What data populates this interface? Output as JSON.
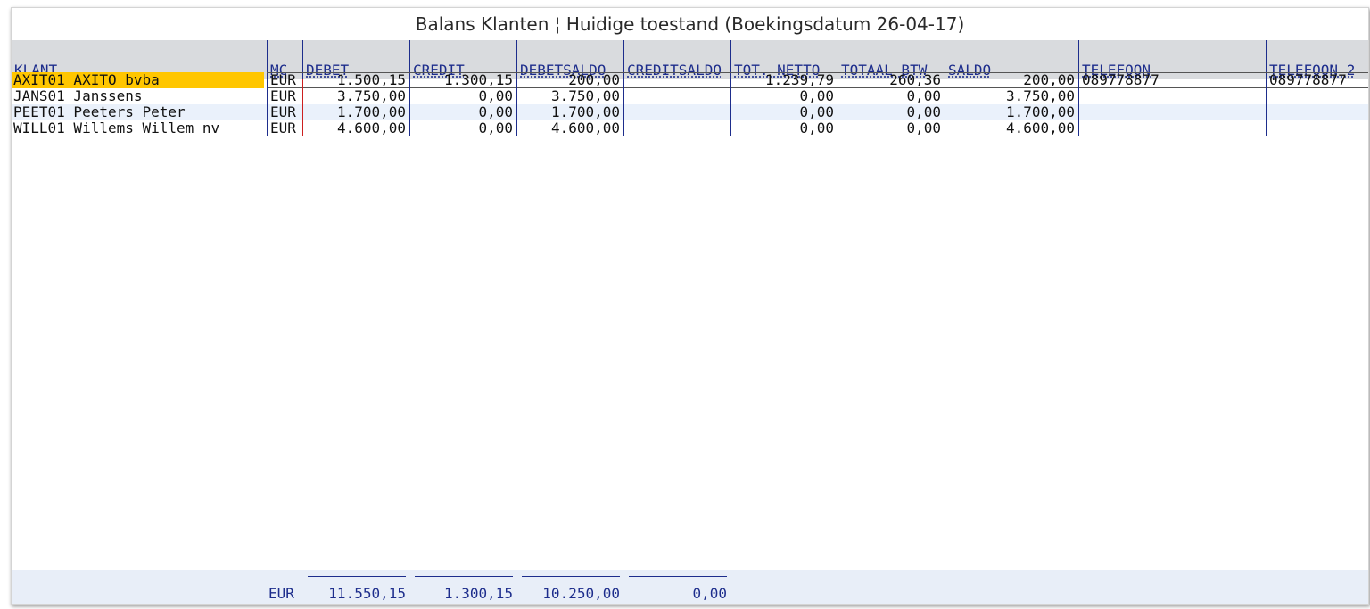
{
  "title": "Balans Klanten ¦ Huidige toestand (Boekingsdatum 26-04-17)",
  "columns": [
    "KLANT",
    "MC",
    "DEBET",
    "CREDIT",
    "DEBETSALDO",
    "CREDITSALDO",
    "TOT. NETTO",
    "TOTAAL BTW",
    "SALDO",
    "TELEFOON",
    "TELEFOON 2"
  ],
  "rows": [
    {
      "klant": "AXIT01 AXITO bvba",
      "mc": "EUR",
      "debet": "1.500,15",
      "credit": "1.300,15",
      "debetsaldo": "200,00",
      "creditsaldo": "",
      "tot_netto": "1.239,79",
      "totaal_btw": "260,36",
      "saldo": "200,00",
      "telefoon": "089778877",
      "telefoon2": "089778877"
    },
    {
      "klant": "JANS01 Janssens",
      "mc": "EUR",
      "debet": "3.750,00",
      "credit": "0,00",
      "debetsaldo": "3.750,00",
      "creditsaldo": "",
      "tot_netto": "0,00",
      "totaal_btw": "0,00",
      "saldo": "3.750,00",
      "telefoon": "",
      "telefoon2": ""
    },
    {
      "klant": "PEET01 Peeters Peter",
      "mc": "EUR",
      "debet": "1.700,00",
      "credit": "0,00",
      "debetsaldo": "1.700,00",
      "creditsaldo": "",
      "tot_netto": "0,00",
      "totaal_btw": "0,00",
      "saldo": "1.700,00",
      "telefoon": "",
      "telefoon2": ""
    },
    {
      "klant": "WILL01 Willems Willem nv",
      "mc": "EUR",
      "debet": "4.600,00",
      "credit": "0,00",
      "debetsaldo": "4.600,00",
      "creditsaldo": "",
      "tot_netto": "0,00",
      "totaal_btw": "0,00",
      "saldo": "4.600,00",
      "telefoon": "",
      "telefoon2": ""
    }
  ],
  "totals": {
    "mc": "EUR",
    "debet": "11.550,15",
    "credit": "1.300,15",
    "debetsaldo": "10.250,00",
    "creditsaldo": "0,00"
  },
  "colors": {
    "header_text": "#1d2d8c",
    "selected_row": "#ffc600",
    "alt_row": "#eaf1fb",
    "header_band": "#d9dbde"
  }
}
